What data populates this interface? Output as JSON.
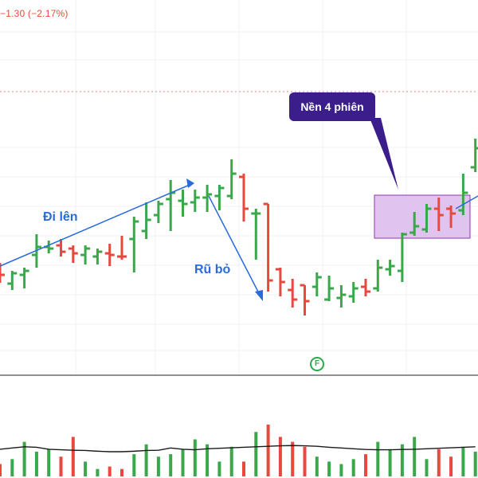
{
  "header": {
    "change_text": "−1.30 (−2.17%)"
  },
  "annotations": {
    "uptrend_label": "Đi lên",
    "shakeout_label": "Rũ bỏ",
    "base_callout": "Nền 4 phiên",
    "event_badge": "F"
  },
  "colors": {
    "up": "#3aa84a",
    "down": "#e8493e",
    "trend_line": "#2a6bd9",
    "base_box_fill": "#dcb8ec",
    "base_box_border": "#8a3aa8",
    "callout_bg": "#3b1d8c",
    "level_line": "#f08080",
    "volume_ma": "#1a1a1a"
  },
  "chart_data": {
    "type": "ohlc-bar",
    "grid": true,
    "bars": [
      {
        "o": 330,
        "h": 330,
        "l": 355,
        "c": 345,
        "dir": "down"
      },
      {
        "o": 356,
        "h": 340,
        "l": 364,
        "c": 343,
        "dir": "up"
      },
      {
        "o": 345,
        "h": 336,
        "l": 362,
        "c": 340,
        "dir": "up"
      },
      {
        "o": 320,
        "h": 294,
        "l": 336,
        "c": 310,
        "dir": "up"
      },
      {
        "o": 310,
        "h": 302,
        "l": 318,
        "c": 312,
        "dir": "up"
      },
      {
        "o": 308,
        "h": 300,
        "l": 322,
        "c": 316,
        "dir": "down"
      },
      {
        "o": 312,
        "h": 308,
        "l": 330,
        "c": 318,
        "dir": "down"
      },
      {
        "o": 320,
        "h": 308,
        "l": 332,
        "c": 312,
        "dir": "up"
      },
      {
        "o": 322,
        "h": 312,
        "l": 332,
        "c": 316,
        "dir": "up"
      },
      {
        "o": 318,
        "h": 306,
        "l": 334,
        "c": 320,
        "dir": "down"
      },
      {
        "o": 322,
        "h": 296,
        "l": 326,
        "c": 322,
        "dir": "down"
      },
      {
        "o": 300,
        "h": 272,
        "l": 342,
        "c": 278,
        "dir": "up"
      },
      {
        "o": 290,
        "h": 254,
        "l": 300,
        "c": 276,
        "dir": "up"
      },
      {
        "o": 270,
        "h": 252,
        "l": 280,
        "c": 256,
        "dir": "up"
      },
      {
        "o": 250,
        "h": 226,
        "l": 290,
        "c": 242,
        "dir": "up"
      },
      {
        "o": 252,
        "h": 238,
        "l": 272,
        "c": 256,
        "dir": "up"
      },
      {
        "o": 254,
        "h": 238,
        "l": 266,
        "c": 248,
        "dir": "up"
      },
      {
        "o": 248,
        "h": 232,
        "l": 266,
        "c": 244,
        "dir": "up"
      },
      {
        "o": 246,
        "h": 232,
        "l": 264,
        "c": 236,
        "dir": "up"
      },
      {
        "o": 246,
        "h": 200,
        "l": 250,
        "c": 218,
        "dir": "up"
      },
      {
        "o": 222,
        "h": 218,
        "l": 278,
        "c": 262,
        "dir": "down"
      },
      {
        "o": 268,
        "h": 262,
        "l": 326,
        "c": 268,
        "dir": "up"
      },
      {
        "o": 256,
        "h": 256,
        "l": 366,
        "c": 352,
        "dir": "down"
      },
      {
        "o": 338,
        "h": 336,
        "l": 372,
        "c": 354,
        "dir": "down"
      },
      {
        "o": 364,
        "h": 350,
        "l": 386,
        "c": 376,
        "dir": "down"
      },
      {
        "o": 358,
        "h": 358,
        "l": 396,
        "c": 378,
        "dir": "down"
      },
      {
        "o": 360,
        "h": 342,
        "l": 372,
        "c": 348,
        "dir": "up"
      },
      {
        "o": 376,
        "h": 346,
        "l": 378,
        "c": 362,
        "dir": "up"
      },
      {
        "o": 374,
        "h": 358,
        "l": 386,
        "c": 370,
        "dir": "up"
      },
      {
        "o": 372,
        "h": 354,
        "l": 380,
        "c": 362,
        "dir": "up"
      },
      {
        "o": 360,
        "h": 350,
        "l": 372,
        "c": 366,
        "dir": "down"
      },
      {
        "o": 362,
        "h": 326,
        "l": 366,
        "c": 336,
        "dir": "up"
      },
      {
        "o": 338,
        "h": 326,
        "l": 346,
        "c": 334,
        "dir": "up"
      },
      {
        "o": 340,
        "h": 292,
        "l": 354,
        "c": 294,
        "dir": "up"
      },
      {
        "o": 292,
        "h": 266,
        "l": 296,
        "c": 284,
        "dir": "up"
      },
      {
        "o": 288,
        "h": 256,
        "l": 292,
        "c": 262,
        "dir": "up"
      },
      {
        "o": 262,
        "h": 248,
        "l": 290,
        "c": 270,
        "dir": "down"
      },
      {
        "o": 262,
        "h": 258,
        "l": 286,
        "c": 268,
        "dir": "down"
      },
      {
        "o": 264,
        "h": 218,
        "l": 270,
        "c": 242,
        "dir": "up"
      },
      {
        "o": 210,
        "h": 174,
        "l": 216,
        "c": 186,
        "dir": "up"
      }
    ],
    "volume": [
      5,
      7,
      14,
      10,
      11,
      8,
      16,
      6,
      3,
      4,
      3,
      9,
      13,
      8,
      9,
      11,
      15,
      13,
      6,
      12,
      6,
      18,
      21,
      16,
      14,
      12,
      8,
      6,
      5,
      7,
      9,
      14,
      11,
      13,
      16,
      7,
      11,
      8,
      12,
      10
    ],
    "volume_ma": [
      11,
      11.5,
      12,
      11.8,
      11,
      10.8,
      10.6,
      10.5,
      10.2,
      10,
      10,
      10.2,
      10.5,
      10.6,
      11.5,
      11,
      10.8,
      11.2,
      11.4,
      11.6,
      11.8,
      12,
      12.2,
      12.4,
      12.5,
      12.4,
      12.2,
      11.8,
      11.5,
      11.2,
      10.9,
      10.8,
      10.8,
      10.9,
      11,
      11.2,
      11.4,
      11.6,
      11.8,
      12
    ]
  }
}
